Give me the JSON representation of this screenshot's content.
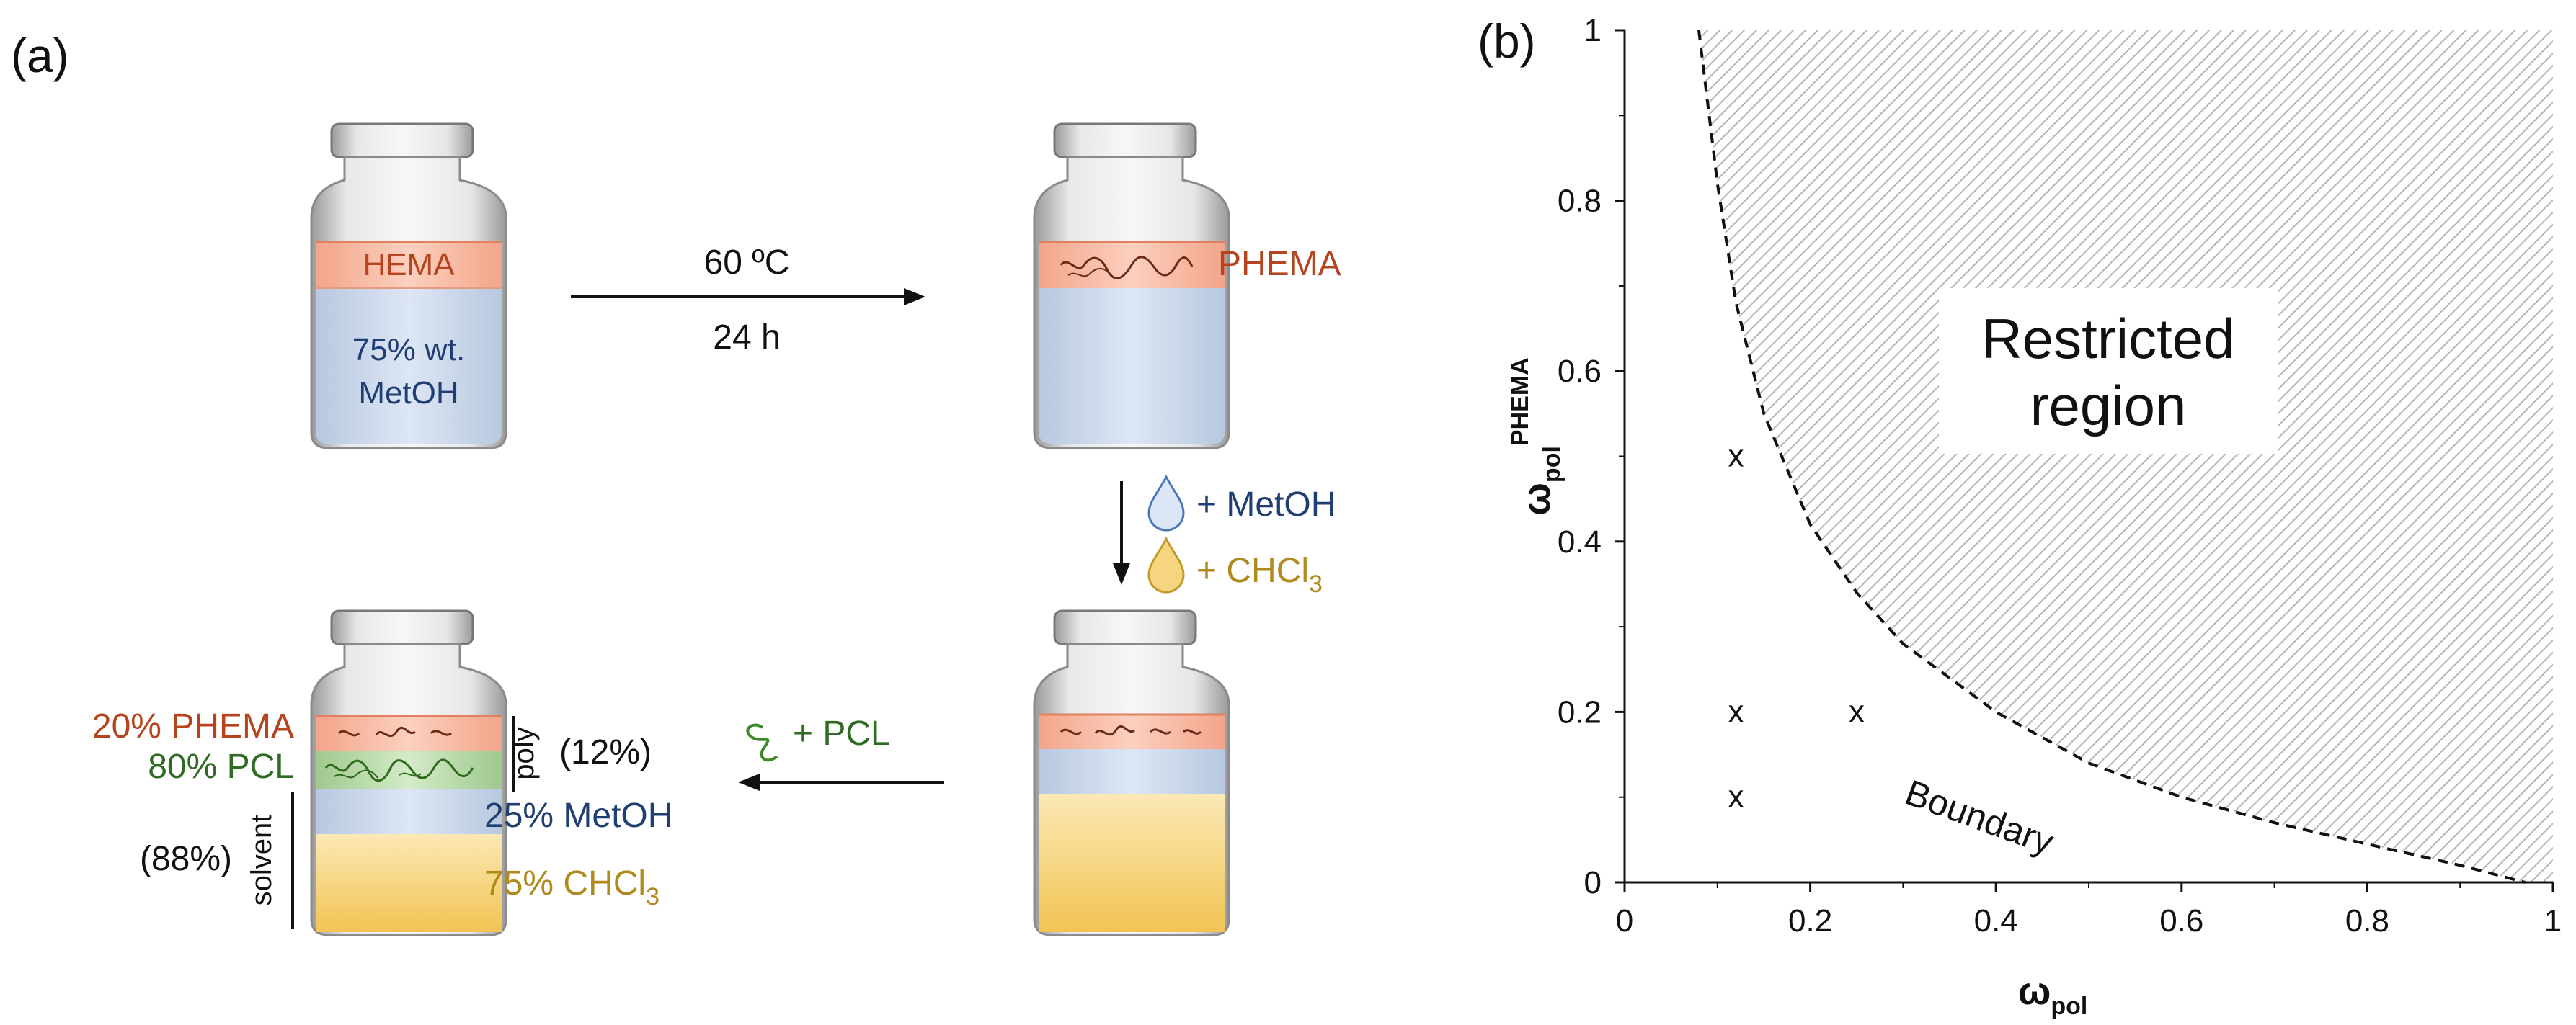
{
  "panel_a": {
    "label": "(a)",
    "step1": {
      "layer": "HEMA",
      "solvent_line1": "75% wt.",
      "solvent_line2": "MetOH"
    },
    "arrow1": {
      "top": "60 ºC",
      "bottom": "24 h"
    },
    "step2": {
      "layer": "PHEMA"
    },
    "arrow2": {
      "add1": "+ MetOH",
      "add2": "+ CHCl",
      "add2_sub": "3"
    },
    "arrow3": {
      "add": "+ PCL"
    },
    "step4": {
      "label_phema": "20% PHEMA",
      "label_pcl": "80% PCL",
      "label_metoh": "25% MetOH",
      "label_chcl3": "75% CHCl",
      "label_chcl3_sub": "3",
      "poly_label": "poly",
      "poly_pct": "(12%)",
      "solvent_label": "solvent",
      "solvent_pct": "(88%)"
    }
  },
  "chart_data": {
    "type": "scatter",
    "panel_label": "(b)",
    "xlabel_main": "ω",
    "xlabel_sub": "pol",
    "ylabel_main": "ω",
    "ylabel_sub": "pol",
    "ylabel_sup": "PHEMA",
    "xlim": [
      0,
      1
    ],
    "ylim": [
      0,
      1
    ],
    "x_ticks": [
      {
        "value": 0,
        "label": "0"
      },
      {
        "value": 0.2,
        "label": "0.2"
      },
      {
        "value": 0.4,
        "label": "0.4"
      },
      {
        "value": 0.6,
        "label": "0.6"
      },
      {
        "value": 0.8,
        "label": "0.8"
      },
      {
        "value": 1,
        "label": "1"
      }
    ],
    "y_ticks": [
      {
        "value": 0,
        "label": "0"
      },
      {
        "value": 0.2,
        "label": "0.2"
      },
      {
        "value": 0.4,
        "label": "0.4"
      },
      {
        "value": 0.6,
        "label": "0.6"
      },
      {
        "value": 0.8,
        "label": "0.8"
      },
      {
        "value": 1,
        "label": "1"
      }
    ],
    "points": [
      {
        "x": 0.12,
        "y": 0.5,
        "marker": "x"
      },
      {
        "x": 0.12,
        "y": 0.2,
        "marker": "x"
      },
      {
        "x": 0.25,
        "y": 0.2,
        "marker": "x"
      },
      {
        "x": 0.12,
        "y": 0.1,
        "marker": "x"
      }
    ],
    "boundary": {
      "label": "Boundary",
      "style": "dashed",
      "points": [
        [
          0.08,
          1.0
        ],
        [
          0.1,
          0.82
        ],
        [
          0.12,
          0.68
        ],
        [
          0.15,
          0.55
        ],
        [
          0.2,
          0.42
        ],
        [
          0.25,
          0.34
        ],
        [
          0.3,
          0.28
        ],
        [
          0.4,
          0.2
        ],
        [
          0.5,
          0.14
        ],
        [
          0.6,
          0.1
        ],
        [
          0.7,
          0.07
        ],
        [
          0.8,
          0.045
        ],
        [
          0.9,
          0.02
        ],
        [
          0.97,
          0.0
        ]
      ]
    },
    "region": {
      "label_line1": "Restricted",
      "label_line2": "region"
    }
  }
}
